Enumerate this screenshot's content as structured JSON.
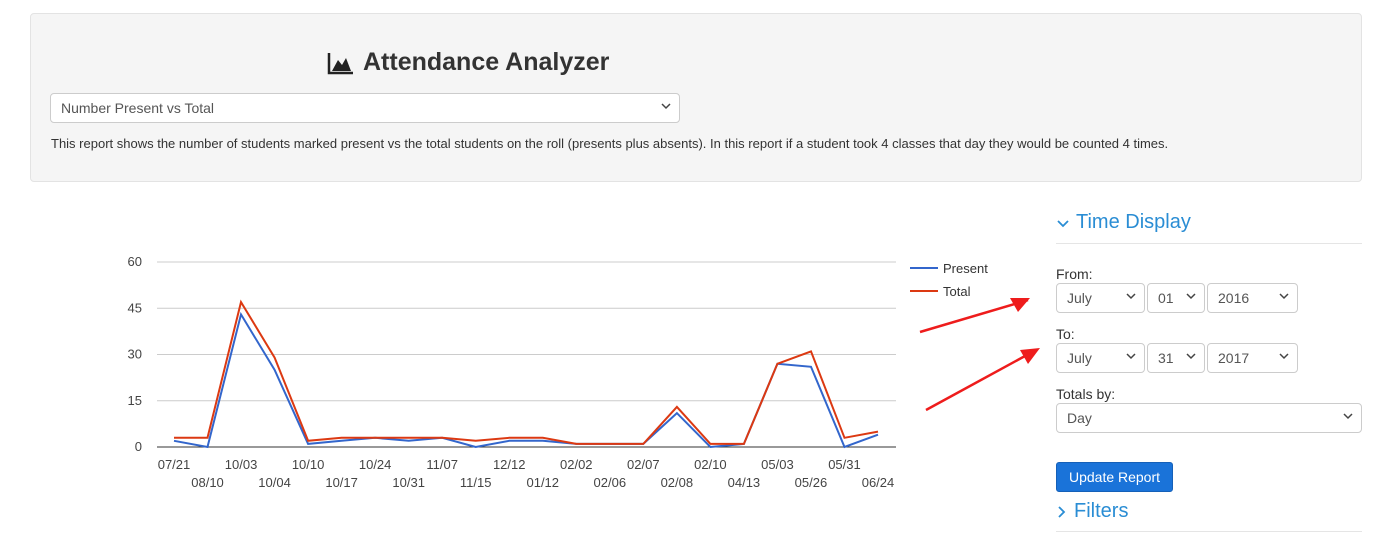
{
  "header": {
    "title": "Attendance Analyzer",
    "title_icon": "area-chart-icon",
    "report_select": "Number Present vs Total",
    "description": "This report shows the number of students marked present vs the total students on the roll (presents plus absents). In this report if a student took 4 classes that day they would be counted 4 times."
  },
  "chart_data": {
    "type": "line",
    "x": [
      "07/21",
      "08/10",
      "10/03",
      "10/04",
      "10/10",
      "10/17",
      "10/24",
      "10/31",
      "11/07",
      "11/15",
      "12/12",
      "01/12",
      "02/02",
      "02/06",
      "02/07",
      "02/08",
      "02/10",
      "04/13",
      "05/03",
      "05/26",
      "05/31",
      "06/24"
    ],
    "series": [
      {
        "name": "Present",
        "color": "#3366cc",
        "values": [
          2,
          0,
          43,
          25,
          1,
          2,
          3,
          2,
          3,
          0,
          2,
          2,
          1,
          1,
          1,
          11,
          0,
          1,
          27,
          26,
          0,
          4
        ]
      },
      {
        "name": "Total",
        "color": "#dc3912",
        "values": [
          3,
          3,
          47,
          29,
          2,
          3,
          3,
          3,
          3,
          2,
          3,
          3,
          1,
          1,
          1,
          13,
          1,
          1,
          27,
          31,
          3,
          5
        ]
      }
    ],
    "y_ticks": [
      "0",
      "15",
      "30",
      "45",
      "60"
    ],
    "ylim": [
      0,
      60
    ],
    "legend": "right",
    "grid": true
  },
  "sidebar": {
    "time_display_heading": "Time Display",
    "from_label": "From:",
    "from_month": "July",
    "from_day": "01",
    "from_year": "2016",
    "to_label": "To:",
    "to_month": "July",
    "to_day": "31",
    "to_year": "2017",
    "totals_label": "Totals by:",
    "totals_value": "Day",
    "update_button": "Update Report",
    "filters_heading": "Filters"
  },
  "colors": {
    "accent": "#2a8dd4",
    "button": "#1a73d9",
    "arrow": "#ee1c1c"
  }
}
